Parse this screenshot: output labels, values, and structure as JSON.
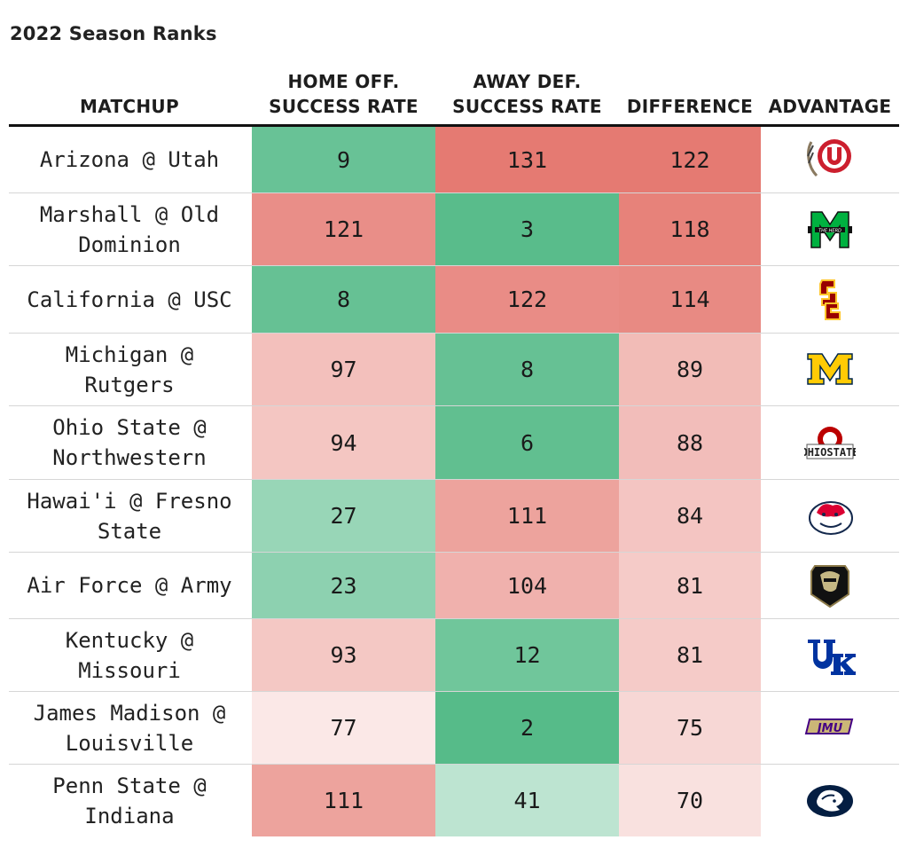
{
  "subtitle": "2022 Season Ranks",
  "columns": {
    "matchup": "MATCHUP",
    "home_off": "HOME OFF.\nSUCCESS RATE",
    "away_def": "AWAY DEF.\nSUCCESS RATE",
    "difference": "DIFFERENCE",
    "advantage": "ADVANTAGE"
  },
  "colors": {
    "strong_green": "#5bbf8b",
    "strong_red": "#e57b72",
    "light_pink": "#f7e0df",
    "light_green": "#c4e7d4"
  },
  "chart_data": {
    "type": "table",
    "rows": [
      {
        "matchup": "Arizona @ Utah",
        "home_off": 9,
        "away_def": 131,
        "difference": 122,
        "advantage_icon": "utah-logo-icon"
      },
      {
        "matchup": "Marshall @ Old\nDominion",
        "home_off": 121,
        "away_def": 3,
        "difference": 118,
        "advantage_icon": "marshall-logo-icon"
      },
      {
        "matchup": "California @ USC",
        "home_off": 8,
        "away_def": 122,
        "difference": 114,
        "advantage_icon": "usc-logo-icon"
      },
      {
        "matchup": "Michigan @\nRutgers",
        "home_off": 97,
        "away_def": 8,
        "difference": 89,
        "advantage_icon": "michigan-logo-icon"
      },
      {
        "matchup": "Ohio State @\nNorthwestern",
        "home_off": 94,
        "away_def": 6,
        "difference": 88,
        "advantage_icon": "ohio-state-logo-icon"
      },
      {
        "matchup": "Hawai'i @ Fresno\nState",
        "home_off": 27,
        "away_def": 111,
        "difference": 84,
        "advantage_icon": "fresno-state-logo-icon"
      },
      {
        "matchup": "Air Force @ Army",
        "home_off": 23,
        "away_def": 104,
        "difference": 81,
        "advantage_icon": "army-logo-icon"
      },
      {
        "matchup": "Kentucky @\nMissouri",
        "home_off": 93,
        "away_def": 12,
        "difference": 81,
        "advantage_icon": "kentucky-logo-icon"
      },
      {
        "matchup": "James Madison @\nLouisville",
        "home_off": 77,
        "away_def": 2,
        "difference": 75,
        "advantage_icon": "jmu-logo-icon"
      },
      {
        "matchup": "Penn State @\nIndiana",
        "home_off": 111,
        "away_def": 41,
        "difference": 70,
        "advantage_icon": "penn-state-logo-icon"
      }
    ]
  }
}
